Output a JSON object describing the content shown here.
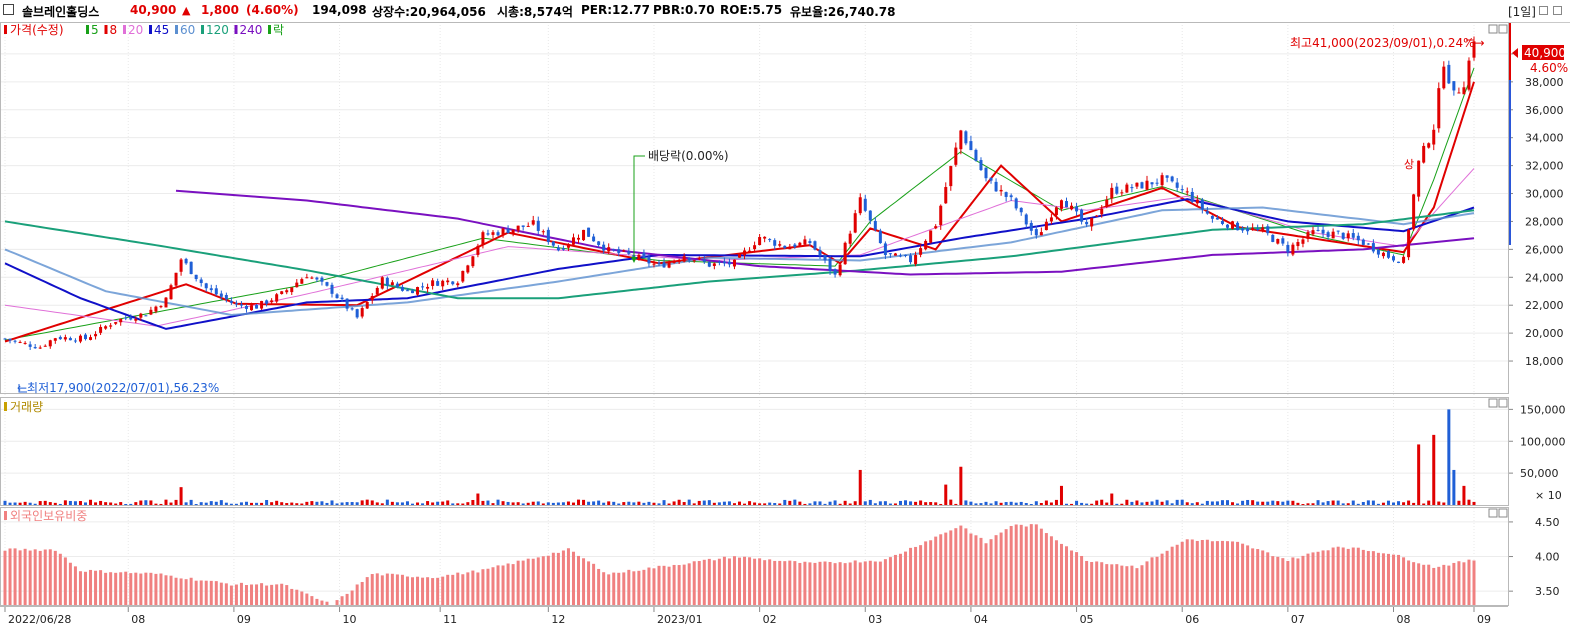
{
  "header": {
    "name": "솔브레인홀딩스",
    "price": "40,900",
    "arrow": "▲",
    "change": "1,800",
    "change_pct": "(4.60%)",
    "volume": "194,098",
    "listed_shares": "상장수:20,964,056",
    "market_cap": "시총:8,574억",
    "per": "PER:12.77",
    "pbr": "PBR:0.70",
    "roe": "ROE:5.75",
    "float": "유보율:26,740.78",
    "period": "[1일]"
  },
  "colors": {
    "up": "#e00000",
    "down": "#1f5fd6",
    "ma5": "#18a018",
    "ma8": "#e00000",
    "ma20": "#e070d8",
    "ma45": "#1010c8",
    "ma60": "#5b8fd0",
    "ma120": "#1aa07a",
    "ma240": "#7a10c0",
    "foreign": "#f08080"
  },
  "legend": {
    "price_title": "가격(수정)",
    "ma": [
      {
        "label": "5",
        "color": "#18a018"
      },
      {
        "label": "8",
        "color": "#e00000"
      },
      {
        "label": "20",
        "color": "#e070d8"
      },
      {
        "label": "45",
        "color": "#1010c8"
      },
      {
        "label": "60",
        "color": "#5b8fd0"
      },
      {
        "label": "120",
        "color": "#1aa07a"
      },
      {
        "label": "240",
        "color": "#7a10c0"
      },
      {
        "label": "락",
        "color": "#18a018"
      }
    ],
    "volume_title": "거래량",
    "foreign_title": "외국인보유비중"
  },
  "annotations": {
    "high": "최고41,000(2023/09/01),0.24%→",
    "low": "←최저17,900(2022/07/01),56.23%",
    "dividend": "배당락(0.00%)",
    "marker_up": "상",
    "last_price_tag": "40,900",
    "last_pct_tag": "4.60%",
    "volume_unit": "× 10"
  },
  "chart_data": [
    {
      "type": "candlestick",
      "title": "가격(수정)",
      "ylim": [
        17000,
        42000
      ],
      "y_ticks": [
        "18,000",
        "20,000",
        "22,000",
        "24,000",
        "26,000",
        "28,000",
        "30,000",
        "32,000",
        "34,000",
        "36,000",
        "38,000",
        "40,000"
      ],
      "x_ticks": [
        "2022/06/28",
        "08",
        "09",
        "10",
        "11",
        "12",
        "2023/01",
        "02",
        "03",
        "04",
        "05",
        "06",
        "07",
        "08",
        "09"
      ],
      "close_anchors": [
        {
          "t": 0,
          "v": 19600
        },
        {
          "t": 3,
          "v": 19300
        },
        {
          "t": 7,
          "v": 19000
        },
        {
          "t": 10,
          "v": 19700
        },
        {
          "t": 16,
          "v": 19600
        },
        {
          "t": 22,
          "v": 20900
        },
        {
          "t": 28,
          "v": 21400
        },
        {
          "t": 32,
          "v": 22400
        },
        {
          "t": 35,
          "v": 25300
        },
        {
          "t": 40,
          "v": 23200
        },
        {
          "t": 46,
          "v": 22000
        },
        {
          "t": 50,
          "v": 21900
        },
        {
          "t": 55,
          "v": 22800
        },
        {
          "t": 60,
          "v": 24200
        },
        {
          "t": 65,
          "v": 23000
        },
        {
          "t": 70,
          "v": 21100
        },
        {
          "t": 75,
          "v": 23800
        },
        {
          "t": 80,
          "v": 23000
        },
        {
          "t": 85,
          "v": 23600
        },
        {
          "t": 90,
          "v": 23800
        },
        {
          "t": 95,
          "v": 27000
        },
        {
          "t": 100,
          "v": 27400
        },
        {
          "t": 105,
          "v": 27800
        },
        {
          "t": 110,
          "v": 26000
        },
        {
          "t": 115,
          "v": 27300
        },
        {
          "t": 120,
          "v": 25900
        },
        {
          "t": 125,
          "v": 25500
        },
        {
          "t": 130,
          "v": 24800
        },
        {
          "t": 135,
          "v": 25600
        },
        {
          "t": 140,
          "v": 24900
        },
        {
          "t": 145,
          "v": 25000
        },
        {
          "t": 150,
          "v": 26900
        },
        {
          "t": 155,
          "v": 26200
        },
        {
          "t": 160,
          "v": 26500
        },
        {
          "t": 165,
          "v": 24100
        },
        {
          "t": 170,
          "v": 29500
        },
        {
          "t": 175,
          "v": 25600
        },
        {
          "t": 180,
          "v": 25200
        },
        {
          "t": 185,
          "v": 27800
        },
        {
          "t": 190,
          "v": 34500
        },
        {
          "t": 195,
          "v": 31000
        },
        {
          "t": 200,
          "v": 29500
        },
        {
          "t": 205,
          "v": 26800
        },
        {
          "t": 210,
          "v": 29800
        },
        {
          "t": 215,
          "v": 27500
        },
        {
          "t": 220,
          "v": 30200
        },
        {
          "t": 225,
          "v": 30500
        },
        {
          "t": 230,
          "v": 31000
        },
        {
          "t": 235,
          "v": 30000
        },
        {
          "t": 240,
          "v": 28200
        },
        {
          "t": 245,
          "v": 27600
        },
        {
          "t": 250,
          "v": 27300
        },
        {
          "t": 255,
          "v": 26000
        },
        {
          "t": 260,
          "v": 27200
        },
        {
          "t": 265,
          "v": 27100
        },
        {
          "t": 270,
          "v": 26500
        },
        {
          "t": 275,
          "v": 25500
        },
        {
          "t": 278,
          "v": 25200
        },
        {
          "t": 281,
          "v": 32200
        },
        {
          "t": 284,
          "v": 34800
        },
        {
          "t": 286,
          "v": 39500
        },
        {
          "t": 288,
          "v": 37000
        },
        {
          "t": 290,
          "v": 38000
        },
        {
          "t": 292,
          "v": 40900
        }
      ],
      "moving_averages": [
        {
          "name": "5",
          "anchors": [
            {
              "t": 0,
              "v": 19500
            },
            {
              "t": 30,
              "v": 21500
            },
            {
              "t": 60,
              "v": 23500
            },
            {
              "t": 95,
              "v": 26800
            },
            {
              "t": 130,
              "v": 25200
            },
            {
              "t": 165,
              "v": 24800
            },
            {
              "t": 172,
              "v": 28000
            },
            {
              "t": 190,
              "v": 33000
            },
            {
              "t": 210,
              "v": 28800
            },
            {
              "t": 230,
              "v": 30500
            },
            {
              "t": 260,
              "v": 27000
            },
            {
              "t": 278,
              "v": 25600
            },
            {
              "t": 284,
              "v": 31000
            },
            {
              "t": 292,
              "v": 39000
            }
          ]
        },
        {
          "name": "8",
          "anchors": [
            {
              "t": 0,
              "v": 19400
            },
            {
              "t": 36,
              "v": 23500
            },
            {
              "t": 46,
              "v": 22100
            },
            {
              "t": 70,
              "v": 22000
            },
            {
              "t": 100,
              "v": 27200
            },
            {
              "t": 130,
              "v": 25000
            },
            {
              "t": 160,
              "v": 26300
            },
            {
              "t": 166,
              "v": 25000
            },
            {
              "t": 172,
              "v": 27500
            },
            {
              "t": 185,
              "v": 26000
            },
            {
              "t": 198,
              "v": 32000
            },
            {
              "t": 210,
              "v": 28000
            },
            {
              "t": 230,
              "v": 30400
            },
            {
              "t": 245,
              "v": 27600
            },
            {
              "t": 278,
              "v": 25800
            },
            {
              "t": 284,
              "v": 29000
            },
            {
              "t": 292,
              "v": 38000
            }
          ]
        },
        {
          "name": "20",
          "anchors": [
            {
              "t": 0,
              "v": 22000
            },
            {
              "t": 30,
              "v": 20500
            },
            {
              "t": 60,
              "v": 22800
            },
            {
              "t": 100,
              "v": 26200
            },
            {
              "t": 140,
              "v": 25200
            },
            {
              "t": 170,
              "v": 25600
            },
            {
              "t": 200,
              "v": 29500
            },
            {
              "t": 215,
              "v": 28800
            },
            {
              "t": 235,
              "v": 29800
            },
            {
              "t": 260,
              "v": 27200
            },
            {
              "t": 278,
              "v": 26200
            },
            {
              "t": 292,
              "v": 31800
            }
          ]
        },
        {
          "name": "45",
          "anchors": [
            {
              "t": 0,
              "v": 25000
            },
            {
              "t": 15,
              "v": 22500
            },
            {
              "t": 32,
              "v": 20300
            },
            {
              "t": 60,
              "v": 22200
            },
            {
              "t": 80,
              "v": 22500
            },
            {
              "t": 110,
              "v": 24600
            },
            {
              "t": 130,
              "v": 25600
            },
            {
              "t": 170,
              "v": 25500
            },
            {
              "t": 190,
              "v": 26800
            },
            {
              "t": 215,
              "v": 28200
            },
            {
              "t": 235,
              "v": 29600
            },
            {
              "t": 255,
              "v": 28000
            },
            {
              "t": 278,
              "v": 27300
            },
            {
              "t": 292,
              "v": 29000
            }
          ]
        },
        {
          "name": "60",
          "anchors": [
            {
              "t": 0,
              "v": 26000
            },
            {
              "t": 20,
              "v": 23000
            },
            {
              "t": 45,
              "v": 21300
            },
            {
              "t": 80,
              "v": 22200
            },
            {
              "t": 110,
              "v": 23700
            },
            {
              "t": 140,
              "v": 25400
            },
            {
              "t": 170,
              "v": 25200
            },
            {
              "t": 200,
              "v": 26500
            },
            {
              "t": 230,
              "v": 28800
            },
            {
              "t": 250,
              "v": 29000
            },
            {
              "t": 278,
              "v": 27800
            },
            {
              "t": 292,
              "v": 28600
            }
          ]
        },
        {
          "name": "120",
          "anchors": [
            {
              "t": 0,
              "v": 28000
            },
            {
              "t": 30,
              "v": 26300
            },
            {
              "t": 60,
              "v": 24500
            },
            {
              "t": 90,
              "v": 22500
            },
            {
              "t": 110,
              "v": 22500
            },
            {
              "t": 140,
              "v": 23700
            },
            {
              "t": 170,
              "v": 24500
            },
            {
              "t": 200,
              "v": 25500
            },
            {
              "t": 240,
              "v": 27400
            },
            {
              "t": 270,
              "v": 27800
            },
            {
              "t": 292,
              "v": 28800
            }
          ]
        },
        {
          "name": "240",
          "anchors": [
            {
              "t": 34,
              "v": 30200
            },
            {
              "t": 60,
              "v": 29500
            },
            {
              "t": 90,
              "v": 28200
            },
            {
              "t": 120,
              "v": 26000
            },
            {
              "t": 150,
              "v": 24800
            },
            {
              "t": 180,
              "v": 24200
            },
            {
              "t": 210,
              "v": 24400
            },
            {
              "t": 240,
              "v": 25600
            },
            {
              "t": 270,
              "v": 26000
            },
            {
              "t": 292,
              "v": 26800
            }
          ]
        }
      ],
      "high": {
        "value": 41000,
        "date": "2023/09/01"
      },
      "low": {
        "value": 17900,
        "date": "2022/07/01"
      },
      "last_close": 40900
    },
    {
      "type": "bar",
      "title": "거래량",
      "ylim": [
        0,
        160000
      ],
      "y_ticks": [
        "50,000",
        "100,000",
        "150,000"
      ],
      "unit": "× 10",
      "spikes": [
        {
          "t": 35,
          "v": 28000
        },
        {
          "t": 94,
          "v": 18000
        },
        {
          "t": 170,
          "v": 55000
        },
        {
          "t": 190,
          "v": 60000
        },
        {
          "t": 187,
          "v": 32000
        },
        {
          "t": 210,
          "v": 30000
        },
        {
          "t": 220,
          "v": 18000
        },
        {
          "t": 281,
          "v": 95000
        },
        {
          "t": 284,
          "v": 110000
        },
        {
          "t": 287,
          "v": 150000
        },
        {
          "t": 288,
          "v": 55000
        },
        {
          "t": 290,
          "v": 30000
        }
      ]
    },
    {
      "type": "bar",
      "title": "외국인보유비중",
      "ylim": [
        3.3,
        4.6
      ],
      "y_ticks": [
        "3.50",
        "4.00",
        "4.50"
      ],
      "anchors": [
        {
          "t": 0,
          "v": 4.1
        },
        {
          "t": 10,
          "v": 4.1
        },
        {
          "t": 15,
          "v": 3.8
        },
        {
          "t": 30,
          "v": 3.75
        },
        {
          "t": 45,
          "v": 3.6
        },
        {
          "t": 55,
          "v": 3.6
        },
        {
          "t": 65,
          "v": 3.3
        },
        {
          "t": 73,
          "v": 3.75
        },
        {
          "t": 85,
          "v": 3.7
        },
        {
          "t": 95,
          "v": 3.8
        },
        {
          "t": 112,
          "v": 4.1
        },
        {
          "t": 120,
          "v": 3.75
        },
        {
          "t": 130,
          "v": 3.85
        },
        {
          "t": 145,
          "v": 4.0
        },
        {
          "t": 160,
          "v": 3.9
        },
        {
          "t": 175,
          "v": 3.95
        },
        {
          "t": 190,
          "v": 4.45
        },
        {
          "t": 195,
          "v": 4.2
        },
        {
          "t": 200,
          "v": 4.45
        },
        {
          "t": 205,
          "v": 4.45
        },
        {
          "t": 215,
          "v": 3.95
        },
        {
          "t": 225,
          "v": 3.85
        },
        {
          "t": 235,
          "v": 4.25
        },
        {
          "t": 245,
          "v": 4.2
        },
        {
          "t": 255,
          "v": 3.95
        },
        {
          "t": 265,
          "v": 4.15
        },
        {
          "t": 275,
          "v": 4.05
        },
        {
          "t": 284,
          "v": 3.85
        },
        {
          "t": 292,
          "v": 3.95
        }
      ]
    }
  ]
}
